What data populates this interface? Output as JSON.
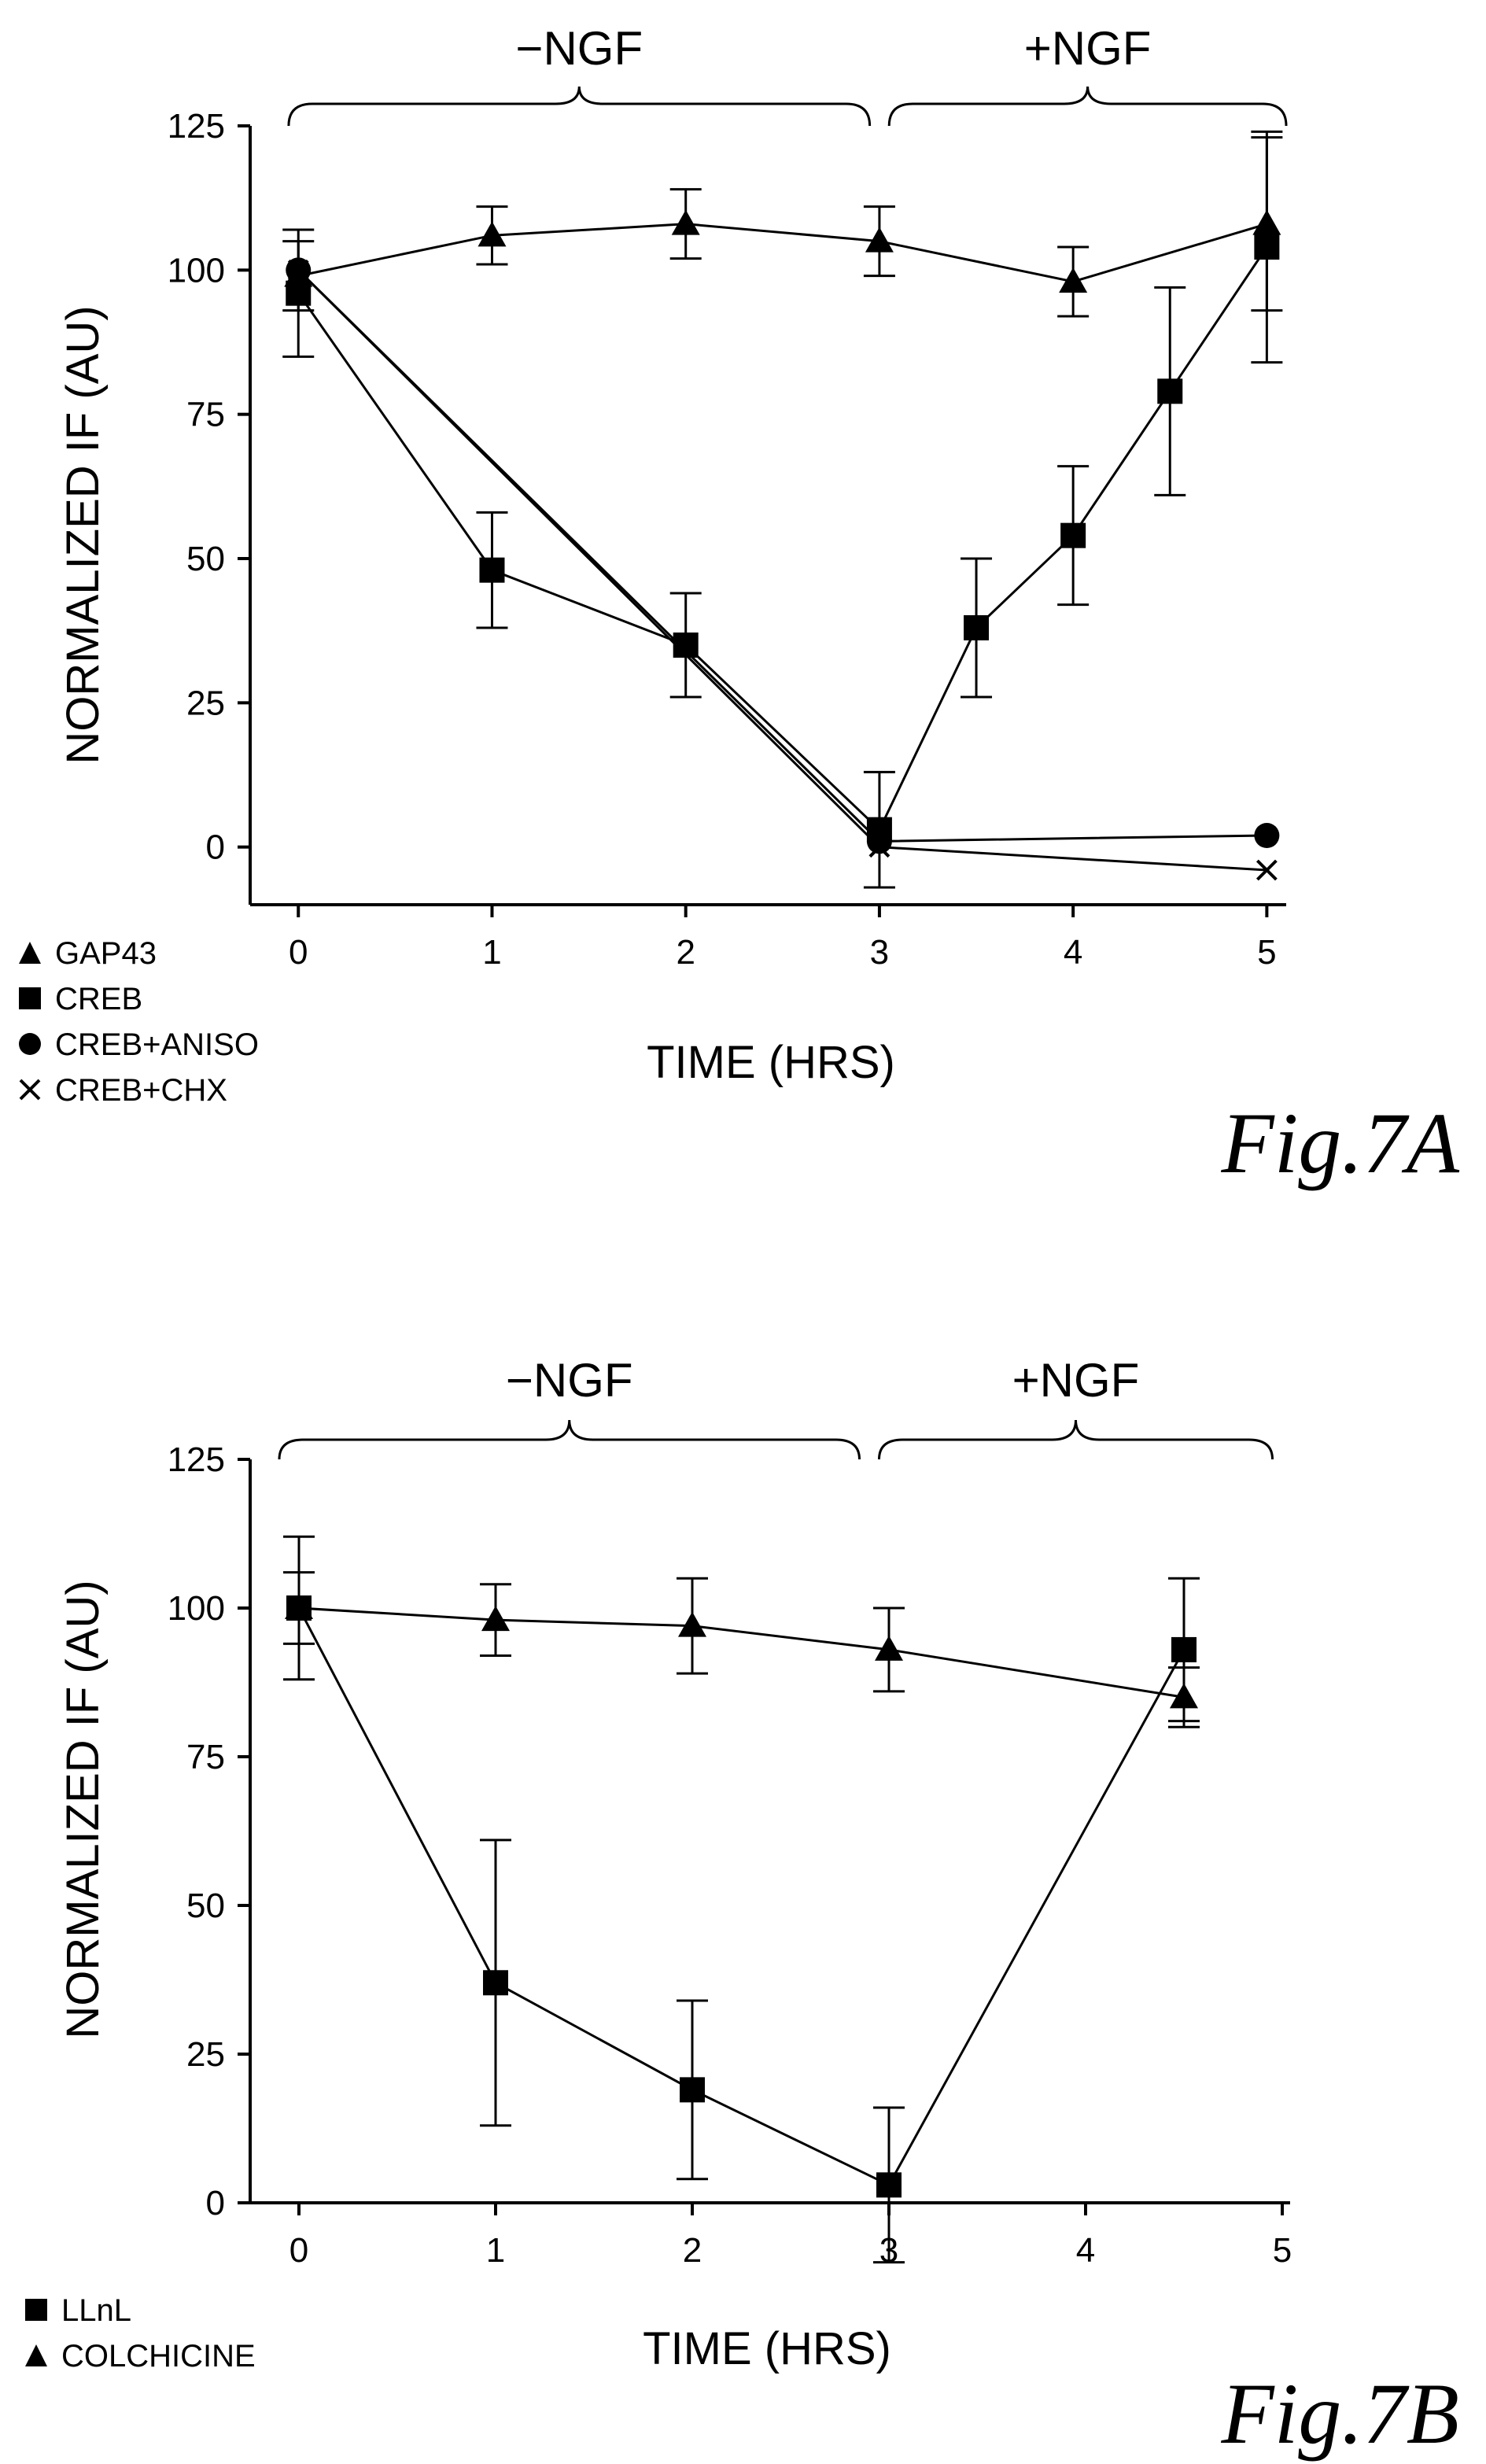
{
  "chart_data": [
    {
      "type": "line",
      "figure_label": "Fig.7A",
      "xlabel": "TIME (HRS)",
      "ylabel": "NORMALIZED IF (AU)",
      "xlim": [
        -0.2,
        5.1
      ],
      "ylim": [
        -10,
        125
      ],
      "xticks": [
        "0",
        "1",
        "2",
        "3",
        "4",
        "5"
      ],
      "yticks": [
        "0",
        "25",
        "50",
        "75",
        "100",
        "125"
      ],
      "brackets": [
        {
          "label": "−NGF",
          "from": -0.05,
          "to": 2.95
        },
        {
          "label": "+NGF",
          "from": 3.05,
          "to": 5.1
        }
      ],
      "legend_position": "bottom-left",
      "series": [
        {
          "name": "GAP43",
          "marker": "triangle",
          "points": [
            {
              "x": 0,
              "y": 99,
              "err": 6
            },
            {
              "x": 1,
              "y": 106,
              "err": 5
            },
            {
              "x": 2,
              "y": 108,
              "err": 6
            },
            {
              "x": 3,
              "y": 105,
              "err": 6
            },
            {
              "x": 4,
              "y": 98,
              "err": 6
            },
            {
              "x": 5,
              "y": 108,
              "err": 15
            }
          ]
        },
        {
          "name": "CREB",
          "marker": "square",
          "points": [
            {
              "x": 0,
              "y": 96,
              "err": 11
            },
            {
              "x": 1,
              "y": 48,
              "err": 10
            },
            {
              "x": 2,
              "y": 35,
              "err": 9
            },
            {
              "x": 3,
              "y": 3,
              "err": 10
            },
            {
              "x": 3.5,
              "y": 38,
              "err": 12
            },
            {
              "x": 4,
              "y": 54,
              "err": 12
            },
            {
              "x": 4.5,
              "y": 79,
              "err": 18
            },
            {
              "x": 5,
              "y": 104,
              "err": 20
            }
          ]
        },
        {
          "name": "CREB+ANISO",
          "marker": "circle",
          "points": [
            {
              "x": 0,
              "y": 100
            },
            {
              "x": 3,
              "y": 1
            },
            {
              "x": 5,
              "y": 2
            }
          ]
        },
        {
          "name": "CREB+CHX",
          "marker": "cross",
          "points": [
            {
              "x": 0,
              "y": 100
            },
            {
              "x": 3,
              "y": 0
            },
            {
              "x": 5,
              "y": -4
            }
          ]
        }
      ]
    },
    {
      "type": "line",
      "figure_label": "Fig.7B",
      "xlabel": "TIME (HRS)",
      "ylabel": "NORMALIZED IF (AU)",
      "xlim": [
        -0.2,
        5.0
      ],
      "ylim": [
        0,
        125
      ],
      "xticks": [
        "0",
        "1",
        "2",
        "3",
        "4",
        "5"
      ],
      "yticks": [
        "0",
        "25",
        "50",
        "75",
        "100",
        "125"
      ],
      "brackets": [
        {
          "label": "−NGF",
          "from": -0.1,
          "to": 2.85
        },
        {
          "label": "+NGF",
          "from": 2.95,
          "to": 4.95
        }
      ],
      "legend_position": "bottom-left",
      "series": [
        {
          "name": "LLnL",
          "marker": "square",
          "points": [
            {
              "x": 0,
              "y": 100,
              "err": 12
            },
            {
              "x": 1,
              "y": 37,
              "err": 24
            },
            {
              "x": 2,
              "y": 19,
              "err": 15
            },
            {
              "x": 3,
              "y": 3,
              "err": 13
            },
            {
              "x": 4.5,
              "y": 93,
              "err": 12
            }
          ]
        },
        {
          "name": "COLCHICINE",
          "marker": "triangle",
          "points": [
            {
              "x": 0,
              "y": 100,
              "err": 6
            },
            {
              "x": 1,
              "y": 98,
              "err": 6
            },
            {
              "x": 2,
              "y": 97,
              "err": 8
            },
            {
              "x": 3,
              "y": 93,
              "err": 7
            },
            {
              "x": 4.5,
              "y": 85,
              "err": 5
            }
          ]
        }
      ]
    }
  ]
}
